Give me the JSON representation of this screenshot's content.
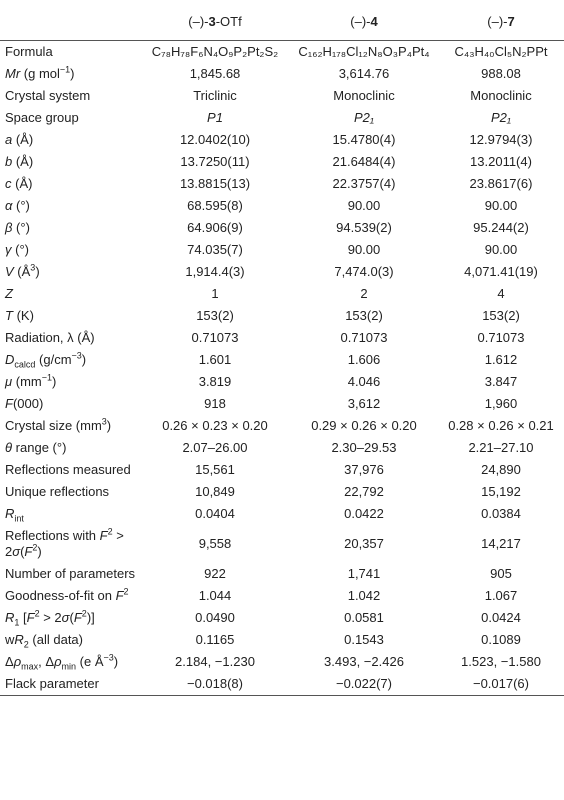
{
  "table": {
    "header": [
      [
        "(–)-",
        {
          "bold": "3"
        },
        "-OTf"
      ],
      [
        "(–)-",
        {
          "bold": "4"
        }
      ],
      [
        "(–)-",
        {
          "bold": "7"
        }
      ]
    ],
    "rows": [
      {
        "label": [
          "Formula"
        ],
        "cells": [
          "C₇₈H₇₈F₆N₄O₉P₂Pt₂S₂",
          "C₁₆₂H₁₇₈Cl₁₂N₈O₃P₄Pt₄",
          "C₄₃H₄₀Cl₅N₂PPt"
        ]
      },
      {
        "label": [
          {
            "italic": "Mr"
          },
          " (g mol",
          {
            "sup": "−1"
          },
          ")"
        ],
        "cells": [
          "1,845.68",
          "3,614.76",
          "988.08"
        ]
      },
      {
        "label": [
          "Crystal system"
        ],
        "cells": [
          "Triclinic",
          "Monoclinic",
          "Monoclinic"
        ]
      },
      {
        "label": [
          "Space group"
        ],
        "italic": true,
        "cells": [
          "P1",
          "P2₁",
          "P2₁"
        ]
      },
      {
        "label": [
          {
            "italic": "a"
          },
          " (Å)"
        ],
        "cells": [
          "12.0402(10)",
          "15.4780(4)",
          "12.9794(3)"
        ]
      },
      {
        "label": [
          {
            "italic": "b"
          },
          " (Å)"
        ],
        "cells": [
          "13.7250(11)",
          "21.6484(4)",
          "13.2011(4)"
        ]
      },
      {
        "label": [
          {
            "italic": "c"
          },
          " (Å)"
        ],
        "cells": [
          "13.8815(13)",
          "22.3757(4)",
          "23.8617(6)"
        ]
      },
      {
        "label": [
          {
            "italic": "α"
          },
          " (°)"
        ],
        "cells": [
          "68.595(8)",
          "90.00",
          "90.00"
        ]
      },
      {
        "label": [
          {
            "italic": "β"
          },
          " (°)"
        ],
        "cells": [
          "64.906(9)",
          "94.539(2)",
          "95.244(2)"
        ]
      },
      {
        "label": [
          {
            "italic": "γ"
          },
          " (°)"
        ],
        "cells": [
          "74.035(7)",
          "90.00",
          "90.00"
        ]
      },
      {
        "label": [
          {
            "italic": "V"
          },
          " (Å",
          {
            "sup": "3"
          },
          ")"
        ],
        "cells": [
          "1,914.4(3)",
          "7,474.0(3)",
          "4,071.41(19)"
        ]
      },
      {
        "label": [
          {
            "italic": "Z"
          }
        ],
        "cells": [
          "1",
          "2",
          "4"
        ]
      },
      {
        "label": [
          {
            "italic": "T"
          },
          " (K)"
        ],
        "cells": [
          "153(2)",
          "153(2)",
          "153(2)"
        ]
      },
      {
        "label": [
          "Radiation, λ (Å)"
        ],
        "cells": [
          "0.71073",
          "0.71073",
          "0.71073"
        ]
      },
      {
        "label": [
          {
            "italic": "D"
          },
          {
            "sub": "calcd"
          },
          " (g/cm",
          {
            "sup": "−3"
          },
          ")"
        ],
        "cells": [
          "1.601",
          "1.606",
          "1.612"
        ]
      },
      {
        "label": [
          {
            "italic": "μ"
          },
          " (mm",
          {
            "sup": "−1"
          },
          ")"
        ],
        "cells": [
          "3.819",
          "4.046",
          "3.847"
        ]
      },
      {
        "label": [
          {
            "italic": "F"
          },
          "(000)"
        ],
        "cells": [
          "918",
          "3,612",
          "1,960"
        ]
      },
      {
        "label": [
          "Crystal size (mm",
          {
            "sup": "3"
          },
          ")"
        ],
        "cells": [
          "0.26 × 0.23 × 0.20",
          "0.29 × 0.26 × 0.20",
          "0.28 × 0.26 × 0.21"
        ]
      },
      {
        "label": [
          {
            "italic": "θ"
          },
          " range (°)"
        ],
        "cells": [
          "2.07–26.00",
          "2.30–29.53",
          "2.21–27.10"
        ]
      },
      {
        "label": [
          "Reflections measured"
        ],
        "cells": [
          "15,561",
          "37,976",
          "24,890"
        ]
      },
      {
        "label": [
          "Unique reflections"
        ],
        "cells": [
          "10,849",
          "22,792",
          "15,192"
        ]
      },
      {
        "label": [
          {
            "italic": "R"
          },
          {
            "sub": "int"
          }
        ],
        "cells": [
          "0.0404",
          "0.0422",
          "0.0384"
        ]
      },
      {
        "label": [
          "Reflections with ",
          {
            "italic": "F"
          },
          {
            "sup": "2"
          },
          " > 2",
          {
            "italic": "σ"
          },
          "(",
          {
            "italic": "F"
          },
          {
            "sup": "2"
          },
          ")"
        ],
        "cells": [
          "9,558",
          "20,357",
          "14,217"
        ]
      },
      {
        "label": [
          "Number of parameters"
        ],
        "cells": [
          "922",
          "1,741",
          "905"
        ]
      },
      {
        "label": [
          "Goodness-of-fit on ",
          {
            "italic": "F"
          },
          {
            "sup": "2"
          }
        ],
        "cells": [
          "1.044",
          "1.042",
          "1.067"
        ]
      },
      {
        "label": [
          {
            "italic": "R"
          },
          {
            "sub": "1"
          },
          " [",
          {
            "italic": "F"
          },
          {
            "sup": "2"
          },
          " > 2",
          {
            "italic": "σ"
          },
          "(",
          {
            "italic": "F"
          },
          {
            "sup": "2"
          },
          ")]"
        ],
        "cells": [
          "0.0490",
          "0.0581",
          "0.0424"
        ]
      },
      {
        "label": [
          "w",
          {
            "italic": "R"
          },
          {
            "sub": "2"
          },
          " (all data)"
        ],
        "cells": [
          "0.1165",
          "0.1543",
          "0.1089"
        ]
      },
      {
        "label": [
          "Δ",
          {
            "italic": "ρ"
          },
          {
            "sub": "max"
          },
          ", Δ",
          {
            "italic": "ρ"
          },
          {
            "sub": "min"
          },
          " (e Å",
          {
            "sup": "−3"
          },
          ")"
        ],
        "cells": [
          "2.184, −1.230",
          "3.493, −2.426",
          "1.523, −1.580"
        ]
      },
      {
        "label": [
          "Flack parameter"
        ],
        "cells": [
          "−0.018(8)",
          "−0.022(7)",
          "−0.017(6)"
        ]
      }
    ]
  }
}
